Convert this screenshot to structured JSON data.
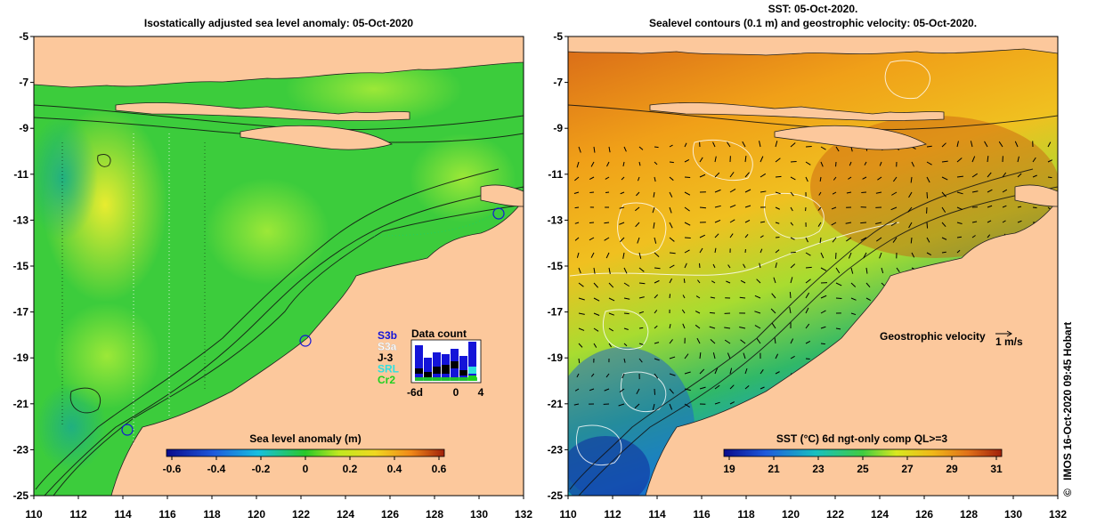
{
  "left_panel": {
    "title": "Isostatically adjusted sea level anomaly: 05-Oct-2020",
    "colorbar": {
      "label": "Sea level anomaly (m)",
      "ticks": [
        "-0.6",
        "-0.4",
        "-0.2",
        "0",
        "0.2",
        "0.4",
        "0.6"
      ],
      "range": [
        -0.6,
        0.6
      ]
    },
    "data_count": {
      "title": "Data count",
      "satellites": [
        "S3b",
        "S3a",
        "J-3",
        "SRL",
        "Cr2"
      ],
      "satellite_colors": [
        "#1414d8",
        "#ffffff",
        "#000000",
        "#30e0e0",
        "#20d020"
      ],
      "axis_ticks": [
        "-6d",
        "0",
        "4"
      ]
    }
  },
  "right_panel": {
    "title_line1": "SST: 05-Oct-2020.",
    "title_line2": "Sealevel contours (0.1 m) and geostrophic velocity: 05-Oct-2020.",
    "velocity_label": "Geostrophic velocity",
    "velocity_scale": "1 m/s",
    "colorbar": {
      "label": "SST (°C) 6d ngt-only comp QL>=3",
      "ticks": [
        "19",
        "21",
        "23",
        "25",
        "27",
        "29",
        "31"
      ],
      "range": [
        19,
        31
      ]
    }
  },
  "axes": {
    "x_ticks": [
      "110",
      "112",
      "114",
      "116",
      "118",
      "120",
      "122",
      "124",
      "126",
      "128",
      "130",
      "132"
    ],
    "y_ticks": [
      "-5",
      "-7",
      "-9",
      "-11",
      "-13",
      "-15",
      "-17",
      "-19",
      "-21",
      "-23",
      "-25"
    ],
    "lon_range": [
      110,
      132
    ],
    "lat_range": [
      -25,
      -5
    ]
  },
  "credit": "IMOS 16-Oct-2020 09:45 Hobart",
  "credit_symbol": "©",
  "colors": {
    "land": "#fcc89c",
    "sla_base": "#3ccc3c",
    "sst_warm": "#e88a1c"
  }
}
